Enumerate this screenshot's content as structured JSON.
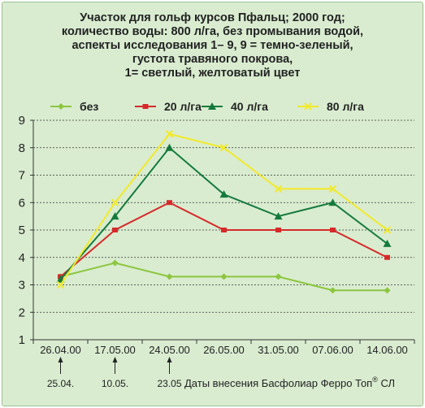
{
  "chart_data": {
    "type": "line",
    "title_lines": [
      "Участок  для гольф курсов Пфальц; 2000 год;",
      "количество воды: 800 л/га, без промывания водой,",
      "аспекты исследования 1– 9, 9 = темно-зеленый,",
      "густота травяного покрова,",
      "1= светлый, желтоватый цвет"
    ],
    "categories": [
      "26.04.00",
      "17.05.00",
      "24.05.00",
      "26.05.00",
      "31.05.00",
      "07.06.00",
      "14.06.00"
    ],
    "ylim": [
      1,
      9
    ],
    "yticks": [
      1,
      2,
      3,
      4,
      5,
      6,
      7,
      8,
      9
    ],
    "grid": true,
    "legend_position": "top",
    "series": [
      {
        "name": "без",
        "color": "#8cc63f",
        "marker": "diamond",
        "values": [
          3.3,
          3.8,
          3.3,
          3.3,
          3.3,
          2.8,
          2.8
        ]
      },
      {
        "name": "20 л/га",
        "color": "#d62a2a",
        "marker": "square",
        "values": [
          3.3,
          5.0,
          6.0,
          5.0,
          5.0,
          5.0,
          4.0
        ]
      },
      {
        "name": "40 л/га",
        "color": "#147a3c",
        "marker": "triangle",
        "values": [
          3.2,
          5.5,
          8.0,
          6.3,
          5.5,
          6.0,
          4.5
        ]
      },
      {
        "name": "80 л/га",
        "color": "#f2ea2a",
        "marker": "x",
        "values": [
          3.0,
          6.0,
          8.5,
          8.0,
          6.5,
          6.5,
          5.0
        ]
      }
    ],
    "application_dates": [
      {
        "label": "25.04.",
        "category_index": 0
      },
      {
        "label": "10.05.",
        "category_index": 1
      },
      {
        "label": "23.05",
        "category_index": 2
      }
    ],
    "footer_label": "Даты внесения Басфолиар Ферро Топ",
    "footer_mark": "®",
    "footer_suffix": " СЛ"
  }
}
